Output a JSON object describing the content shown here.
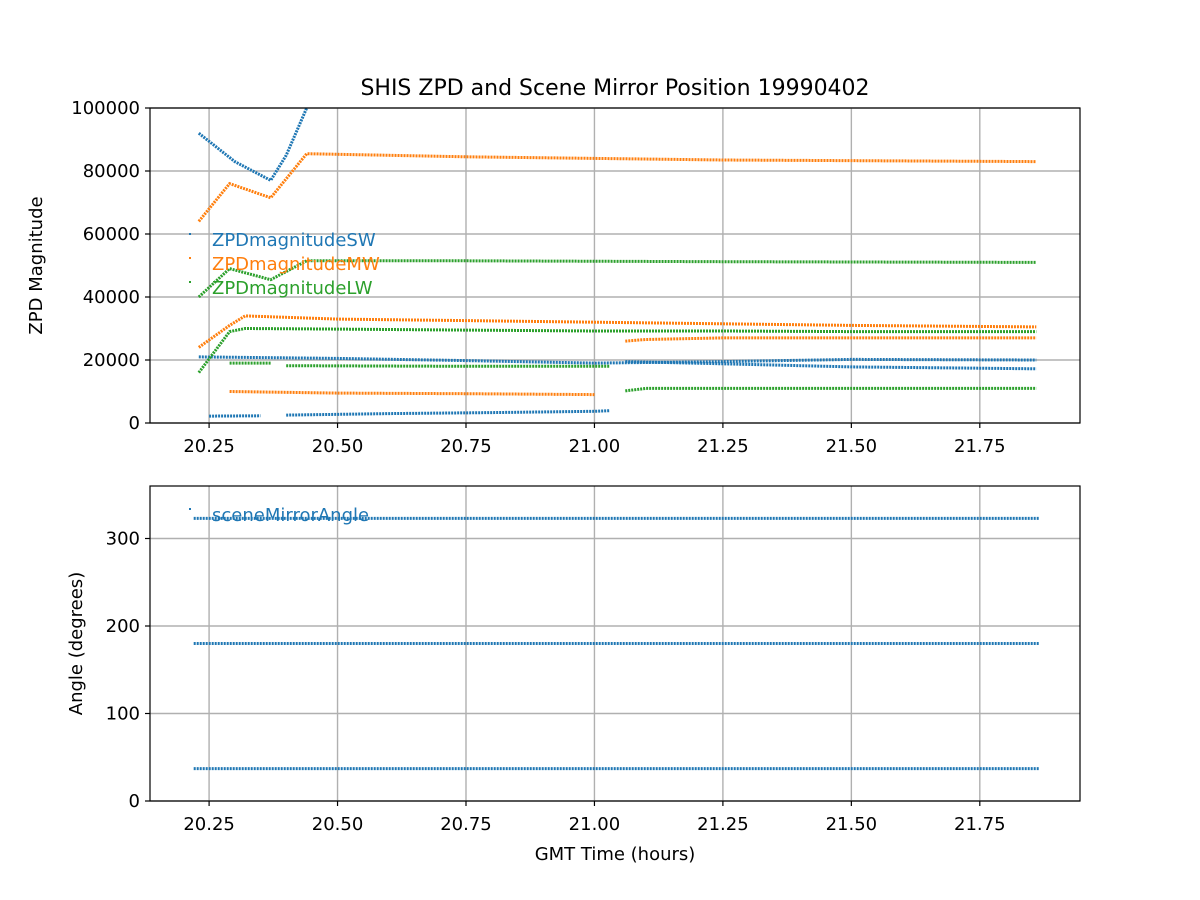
{
  "chart_data": [
    {
      "type": "scatter",
      "title": "SHIS ZPD and Scene Mirror Position 19990402",
      "xlabel": "",
      "ylabel": "ZPD Magnitude",
      "xlim": [
        20.135,
        21.945
      ],
      "ylim": [
        0,
        100000
      ],
      "xticks": [
        "20.25",
        "20.50",
        "20.75",
        "21.00",
        "21.25",
        "21.50",
        "21.75"
      ],
      "yticks": [
        "0",
        "20000",
        "40000",
        "60000",
        "80000",
        "100000"
      ],
      "grid": true,
      "legend_position": "center-left",
      "series": [
        {
          "name": "ZPDmagnitudeSW",
          "color": "#1f77b4",
          "segments": [
            [
              [
                20.23,
                92000
              ],
              [
                20.3,
                83000
              ],
              [
                20.37,
                77000
              ],
              [
                20.4,
                85000
              ],
              [
                20.44,
                100000
              ]
            ],
            [
              [
                20.23,
                21000
              ],
              [
                20.5,
                20500
              ],
              [
                20.75,
                19800
              ],
              [
                21.0,
                19000
              ],
              [
                21.25,
                19500
              ],
              [
                21.5,
                20200
              ],
              [
                21.86,
                20000
              ]
            ],
            [
              [
                21.06,
                19500
              ],
              [
                21.25,
                18800
              ],
              [
                21.5,
                17800
              ],
              [
                21.86,
                17200
              ]
            ],
            [
              [
                20.4,
                2500
              ],
              [
                20.6,
                3000
              ],
              [
                20.8,
                3300
              ],
              [
                21.0,
                3700
              ],
              [
                21.03,
                3900
              ]
            ],
            [
              [
                20.25,
                2200
              ],
              [
                20.35,
                2300
              ]
            ]
          ]
        },
        {
          "name": "ZPDmagnitudeMW",
          "color": "#ff7f0e",
          "segments": [
            [
              [
                20.23,
                64000
              ],
              [
                20.29,
                76000
              ],
              [
                20.37,
                71500
              ],
              [
                20.44,
                85500
              ],
              [
                20.75,
                84500
              ],
              [
                21.25,
                83500
              ],
              [
                21.86,
                83000
              ]
            ],
            [
              [
                20.23,
                24000
              ],
              [
                20.29,
                31000
              ],
              [
                20.32,
                34000
              ],
              [
                20.5,
                33000
              ],
              [
                20.75,
                32500
              ],
              [
                21.0,
                32000
              ],
              [
                21.25,
                31500
              ],
              [
                21.5,
                31000
              ],
              [
                21.86,
                30500
              ]
            ],
            [
              [
                21.06,
                26000
              ],
              [
                21.1,
                26500
              ],
              [
                21.25,
                27000
              ],
              [
                21.86,
                27000
              ]
            ],
            [
              [
                20.29,
                10000
              ],
              [
                20.5,
                9500
              ],
              [
                20.75,
                9300
              ],
              [
                21.0,
                9000
              ]
            ]
          ]
        },
        {
          "name": "ZPDmagnitudeLW",
          "color": "#2ca02c",
          "segments": [
            [
              [
                20.23,
                40000
              ],
              [
                20.29,
                49000
              ],
              [
                20.37,
                45500
              ],
              [
                20.44,
                51500
              ],
              [
                20.75,
                51500
              ],
              [
                21.25,
                51200
              ],
              [
                21.86,
                51000
              ]
            ],
            [
              [
                20.23,
                16000
              ],
              [
                20.29,
                29000
              ],
              [
                20.32,
                30000
              ],
              [
                20.5,
                29800
              ],
              [
                20.75,
                29500
              ],
              [
                21.0,
                29200
              ],
              [
                21.25,
                29200
              ],
              [
                21.5,
                29000
              ],
              [
                21.86,
                29000
              ]
            ],
            [
              [
                20.4,
                18200
              ],
              [
                20.75,
                18000
              ],
              [
                21.03,
                18000
              ]
            ],
            [
              [
                20.29,
                19000
              ],
              [
                20.37,
                19000
              ]
            ],
            [
              [
                21.06,
                10200
              ],
              [
                21.1,
                11000
              ],
              [
                21.5,
                11000
              ],
              [
                21.86,
                11000
              ]
            ]
          ]
        }
      ]
    },
    {
      "type": "scatter",
      "title": "",
      "xlabel": "GMT Time (hours)",
      "ylabel": "Angle (degrees)",
      "xlim": [
        20.135,
        21.945
      ],
      "ylim": [
        0,
        360
      ],
      "xticks": [
        "20.25",
        "20.50",
        "20.75",
        "21.00",
        "21.25",
        "21.50",
        "21.75"
      ],
      "yticks": [
        "0",
        "100",
        "200",
        "300"
      ],
      "grid": true,
      "legend_position": "upper-left",
      "series": [
        {
          "name": "sceneMirrorAngle",
          "color": "#1f77b4",
          "segments": [
            [
              [
                20.22,
                323
              ],
              [
                21.865,
                323
              ]
            ],
            [
              [
                20.22,
                180
              ],
              [
                21.865,
                180
              ]
            ],
            [
              [
                20.22,
                37
              ],
              [
                21.865,
                37
              ]
            ]
          ]
        }
      ]
    }
  ]
}
